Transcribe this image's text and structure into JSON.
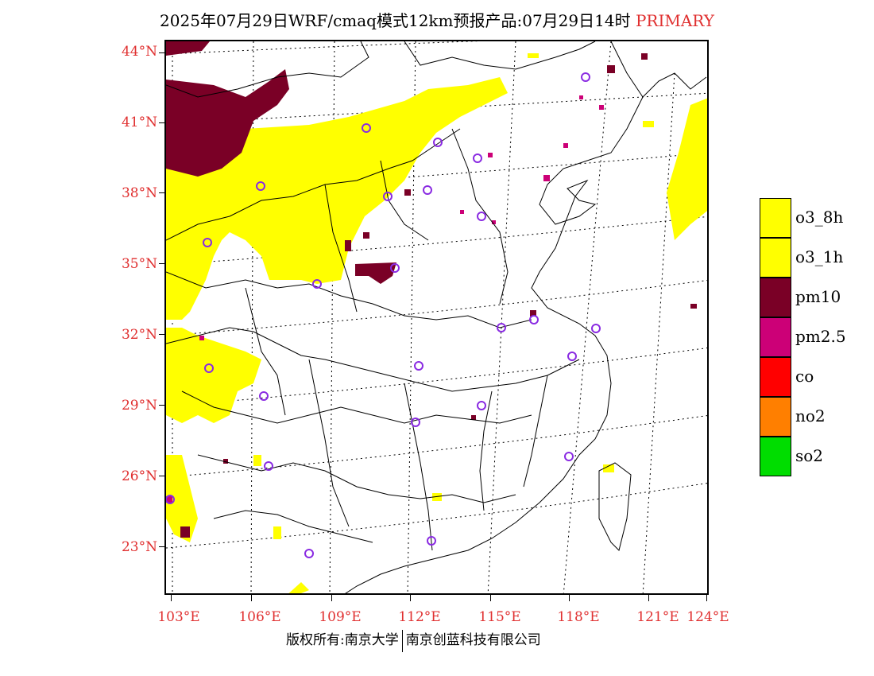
{
  "header": {
    "title": "2025年07月29日WRF/cmaq模式12km预报产品:07月29日14时",
    "tag": "PRIMARY"
  },
  "map": {
    "lat_labels": [
      "44°N",
      "41°N",
      "38°N",
      "35°N",
      "32°N",
      "29°N",
      "26°N",
      "23°N"
    ],
    "lon_labels": [
      "103°E",
      "106°E",
      "109°E",
      "112°E",
      "115°E",
      "118°E",
      "121°E",
      "124°E"
    ],
    "layer_colors": {
      "o3_8h": "#ffff00",
      "o3_1h": "#ffff00",
      "pm10": "#7a0026",
      "pm2_5": "#cc0077",
      "co": "#ff0000",
      "no2": "#ff7f00",
      "so2": "#00dd00",
      "station_marker": "#8a2be2"
    }
  },
  "legend": [
    {
      "label": "o3_8h",
      "color": "#ffff00"
    },
    {
      "label": "o3_1h",
      "color": "#ffff00"
    },
    {
      "label": "pm10",
      "color": "#7a0026"
    },
    {
      "label": "pm2.5",
      "color": "#cc0077"
    },
    {
      "label": "co",
      "color": "#ff0000"
    },
    {
      "label": "no2",
      "color": "#ff7f00"
    },
    {
      "label": "so2",
      "color": "#00dd00"
    }
  ],
  "footer": {
    "left": "版权所有:南京大学",
    "right": "南京创蓝科技有限公司"
  }
}
